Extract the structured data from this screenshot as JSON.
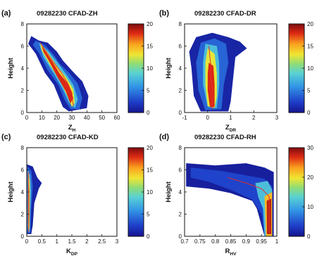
{
  "chart_data": [
    {
      "type": "contour",
      "panel_label": "(a)",
      "title": "09282230    CFAD-ZH",
      "ylabel": "Height",
      "xlabel": "Z",
      "xlabel_sub": "H",
      "xlim": [
        0,
        60
      ],
      "ylim": [
        0,
        8
      ],
      "xticks": [
        "0",
        "10",
        "20",
        "30",
        "40",
        "50",
        "60"
      ],
      "yticks": [
        "0",
        "2",
        "4",
        "6",
        "8"
      ],
      "colorbar_ticks": [
        "0",
        "5",
        "10",
        "15",
        "20"
      ],
      "colorbar_range": [
        0,
        20
      ],
      "contour_bands": [
        {
          "level": 1,
          "points": [
            [
              3,
              6.9
            ],
            [
              8,
              6.5
            ],
            [
              14,
              6.3
            ],
            [
              20,
              5.5
            ],
            [
              24,
              4.7
            ],
            [
              30,
              3.8
            ],
            [
              37,
              2.8
            ],
            [
              41,
              1.5
            ],
            [
              40,
              0.4
            ],
            [
              28,
              0.1
            ],
            [
              24,
              0.5
            ],
            [
              21,
              1.5
            ],
            [
              18,
              2.5
            ],
            [
              12,
              3.6
            ],
            [
              6,
              5.3
            ],
            [
              1,
              6.2
            ]
          ]
        },
        {
          "level": 4,
          "points": [
            [
              6,
              6.5
            ],
            [
              12,
              6.1
            ],
            [
              18,
              5.2
            ],
            [
              22,
              4.4
            ],
            [
              28,
              3.6
            ],
            [
              34,
              2.6
            ],
            [
              37,
              1.3
            ],
            [
              35,
              0.3
            ],
            [
              29,
              0.3
            ],
            [
              25,
              1.2
            ],
            [
              21,
              2.5
            ],
            [
              14,
              3.8
            ],
            [
              8,
              5.4
            ],
            [
              4,
              6.1
            ]
          ]
        },
        {
          "level": 8,
          "points": [
            [
              8,
              6.3
            ],
            [
              14,
              5.6
            ],
            [
              20,
              4.6
            ],
            [
              26,
              3.5
            ],
            [
              31,
              2.5
            ],
            [
              34,
              1.2
            ],
            [
              32,
              0.4
            ],
            [
              28,
              0.9
            ],
            [
              24,
              2.1
            ],
            [
              18,
              3.5
            ],
            [
              11,
              5.0
            ]
          ]
        },
        {
          "level": 13,
          "points": [
            [
              9,
              6.2
            ],
            [
              14,
              5.4
            ],
            [
              20,
              4.2
            ],
            [
              26,
              3.2
            ],
            [
              31,
              2.1
            ],
            [
              32,
              0.9
            ],
            [
              30,
              0.5
            ],
            [
              27,
              1.5
            ],
            [
              22,
              2.9
            ],
            [
              15,
              4.4
            ],
            [
              10,
              5.6
            ]
          ]
        },
        {
          "level": 18,
          "points": [
            [
              10,
              6.0
            ],
            [
              13,
              5.4
            ],
            [
              17,
              4.6
            ],
            [
              22,
              3.5
            ],
            [
              28,
              2.5
            ],
            [
              31,
              1.3
            ],
            [
              29,
              0.8
            ],
            [
              26,
              1.9
            ],
            [
              20,
              3.3
            ],
            [
              15,
              4.6
            ],
            [
              11,
              5.5
            ]
          ]
        }
      ],
      "mode_line": [
        [
          9,
          6.3
        ],
        [
          13,
          5.5
        ],
        [
          18,
          4.5
        ],
        [
          23,
          3.6
        ],
        [
          27,
          2.7
        ],
        [
          30,
          1.8
        ],
        [
          31,
          0.6
        ]
      ]
    },
    {
      "type": "contour",
      "panel_label": "(b)",
      "title": "09282230    CFAD-DR",
      "ylabel": "Height",
      "xlabel": "Z",
      "xlabel_sub": "DR",
      "xlim": [
        -1,
        3
      ],
      "ylim": [
        0,
        8
      ],
      "xticks": [
        "-1",
        "0",
        "1",
        "2",
        "3"
      ],
      "yticks": [
        "0",
        "2",
        "4",
        "6",
        "8"
      ],
      "colorbar_ticks": [
        "0",
        "5",
        "10",
        "15",
        "20"
      ],
      "colorbar_range": [
        0,
        20
      ],
      "contour_bands": [
        {
          "level": 1,
          "points": [
            [
              -0.5,
              6.8
            ],
            [
              0.2,
              7.2
            ],
            [
              0.9,
              6.8
            ],
            [
              1.4,
              6.4
            ],
            [
              1.7,
              5.8
            ],
            [
              1.2,
              5.0
            ],
            [
              1.1,
              3.0
            ],
            [
              1.0,
              1.0
            ],
            [
              0.9,
              0.1
            ],
            [
              -0.3,
              0.1
            ],
            [
              -0.6,
              1.5
            ],
            [
              -0.7,
              4.0
            ],
            [
              -0.8,
              5.5
            ]
          ]
        },
        {
          "level": 4,
          "points": [
            [
              -0.3,
              6.3
            ],
            [
              0.3,
              6.7
            ],
            [
              0.8,
              6.2
            ],
            [
              0.9,
              4.5
            ],
            [
              0.7,
              2.5
            ],
            [
              0.6,
              0.3
            ],
            [
              -0.1,
              0.2
            ],
            [
              -0.4,
              2.0
            ],
            [
              -0.5,
              4.5
            ]
          ]
        },
        {
          "level": 8,
          "points": [
            [
              -0.1,
              6.2
            ],
            [
              0.4,
              6.0
            ],
            [
              0.5,
              4.5
            ],
            [
              0.5,
              2.5
            ],
            [
              0.4,
              0.4
            ],
            [
              0.0,
              0.5
            ],
            [
              -0.2,
              2.5
            ],
            [
              -0.2,
              4.5
            ]
          ]
        },
        {
          "level": 13,
          "points": [
            [
              0.0,
              5.8
            ],
            [
              0.3,
              5.3
            ],
            [
              0.4,
              3.5
            ],
            [
              0.4,
              1.5
            ],
            [
              0.3,
              0.4
            ],
            [
              0.0,
              0.6
            ],
            [
              -0.1,
              2.5
            ],
            [
              -0.1,
              4.5
            ]
          ]
        },
        {
          "level": 18,
          "points": [
            [
              0.05,
              4.5
            ],
            [
              0.25,
              4.2
            ],
            [
              0.3,
              2.5
            ],
            [
              0.3,
              0.5
            ],
            [
              0.1,
              0.5
            ],
            [
              0.0,
              2.0
            ],
            [
              0.0,
              3.5
            ]
          ]
        }
      ],
      "mode_line": [
        [
          0.05,
          6.0
        ],
        [
          0.1,
          5.0
        ],
        [
          0.15,
          4.0
        ],
        [
          0.15,
          3.0
        ],
        [
          0.2,
          2.0
        ],
        [
          0.2,
          1.0
        ],
        [
          0.2,
          0.3
        ]
      ]
    },
    {
      "type": "contour",
      "panel_label": "(c)",
      "title": "09282230    CFAD-KD",
      "ylabel": "Height",
      "xlabel": "K",
      "xlabel_sub": "DP",
      "xlim": [
        0,
        3
      ],
      "ylim": [
        0,
        8
      ],
      "xticks": [
        "0",
        "0.5",
        "1",
        "1.5",
        "2",
        "2.5",
        "3"
      ],
      "yticks": [
        "0",
        "2",
        "4",
        "6",
        "8"
      ],
      "colorbar_ticks": [
        "0",
        "5",
        "10",
        "15",
        "20"
      ],
      "colorbar_range": [
        0,
        20
      ],
      "contour_bands": [
        {
          "level": 1,
          "points": [
            [
              0.0,
              6.5
            ],
            [
              0.2,
              6.3
            ],
            [
              0.35,
              5.3
            ],
            [
              0.5,
              4.8
            ],
            [
              0.4,
              4.3
            ],
            [
              0.25,
              3.0
            ],
            [
              0.2,
              1.0
            ],
            [
              0.15,
              0.2
            ],
            [
              0.0,
              0.2
            ]
          ]
        },
        {
          "level": 4,
          "points": [
            [
              0.02,
              6.3
            ],
            [
              0.15,
              5.9
            ],
            [
              0.2,
              4.5
            ],
            [
              0.15,
              2.5
            ],
            [
              0.12,
              0.3
            ],
            [
              0.02,
              0.3
            ]
          ]
        },
        {
          "level": 8,
          "points": [
            [
              0.03,
              6.0
            ],
            [
              0.12,
              5.5
            ],
            [
              0.14,
              4.0
            ],
            [
              0.11,
              2.0
            ],
            [
              0.1,
              0.4
            ],
            [
              0.03,
              0.5
            ]
          ]
        },
        {
          "level": 13,
          "points": [
            [
              0.04,
              5.8
            ],
            [
              0.1,
              5.0
            ],
            [
              0.1,
              3.0
            ],
            [
              0.09,
              0.6
            ],
            [
              0.04,
              0.8
            ],
            [
              0.04,
              3.0
            ]
          ]
        },
        {
          "level": 18,
          "points": [
            [
              0.05,
              4.8
            ],
            [
              0.08,
              4.2
            ],
            [
              0.08,
              2.0
            ],
            [
              0.07,
              1.0
            ],
            [
              0.05,
              1.2
            ]
          ]
        }
      ],
      "mode_line": [
        [
          0.06,
          5.8
        ],
        [
          0.06,
          4.5
        ],
        [
          0.06,
          3.0
        ],
        [
          0.06,
          1.5
        ],
        [
          0.06,
          0.4
        ]
      ]
    },
    {
      "type": "contour",
      "panel_label": "(d)",
      "title": "09282230    CFAD-RH",
      "ylabel": "Height",
      "xlabel": "R",
      "xlabel_sub": "HV",
      "xlim": [
        0.7,
        1.0
      ],
      "ylim": [
        0,
        8
      ],
      "xticks": [
        "0.7",
        "0.75",
        "0.8",
        "0.85",
        "0.9",
        "0.95",
        "1"
      ],
      "yticks": [
        "0",
        "2",
        "4",
        "6",
        "8"
      ],
      "colorbar_ticks": [
        "0",
        "10",
        "20",
        "30"
      ],
      "colorbar_range": [
        0,
        30
      ],
      "contour_bands": [
        {
          "level": 1,
          "points": [
            [
              0.705,
              6.6
            ],
            [
              0.8,
              6.4
            ],
            [
              0.9,
              6.6
            ],
            [
              0.96,
              6.2
            ],
            [
              0.99,
              5.8
            ],
            [
              0.99,
              0.0
            ],
            [
              0.96,
              0.0
            ],
            [
              0.945,
              1.5
            ],
            [
              0.935,
              2.5
            ],
            [
              0.92,
              3.2
            ],
            [
              0.85,
              3.9
            ],
            [
              0.78,
              4.3
            ],
            [
              0.705,
              4.5
            ]
          ]
        },
        {
          "level": 4,
          "points": [
            [
              0.72,
              6.2
            ],
            [
              0.82,
              5.9
            ],
            [
              0.9,
              5.5
            ],
            [
              0.96,
              5.2
            ],
            [
              0.985,
              4.5
            ],
            [
              0.985,
              0.0
            ],
            [
              0.96,
              0.0
            ],
            [
              0.95,
              2.0
            ],
            [
              0.92,
              3.3
            ],
            [
              0.85,
              4.2
            ],
            [
              0.78,
              4.9
            ],
            [
              0.72,
              5.3
            ]
          ]
        },
        {
          "level": 12,
          "points": [
            [
              0.93,
              4.8
            ],
            [
              0.97,
              5.0
            ],
            [
              0.985,
              4.2
            ],
            [
              0.985,
              0.0
            ],
            [
              0.96,
              0.0
            ],
            [
              0.955,
              2.5
            ],
            [
              0.94,
              3.5
            ]
          ]
        },
        {
          "level": 22,
          "points": [
            [
              0.96,
              3.6
            ],
            [
              0.985,
              4.0
            ],
            [
              0.985,
              0.0
            ],
            [
              0.965,
              0.0
            ],
            [
              0.962,
              2.0
            ]
          ]
        },
        {
          "level": 28,
          "points": [
            [
              0.967,
              3.2
            ],
            [
              0.982,
              3.4
            ],
            [
              0.982,
              0.2
            ],
            [
              0.968,
              0.2
            ]
          ]
        }
      ],
      "mode_line": [
        [
          0.84,
          5.3
        ],
        [
          0.9,
          4.8
        ],
        [
          0.95,
          4.3
        ],
        [
          0.975,
          3.6
        ],
        [
          0.975,
          2.0
        ],
        [
          0.975,
          0.3
        ]
      ]
    }
  ]
}
